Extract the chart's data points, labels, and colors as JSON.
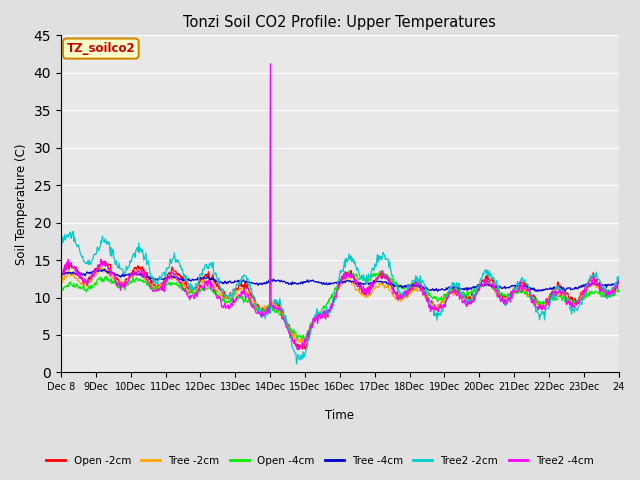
{
  "title": "Tonzi Soil CO2 Profile: Upper Temperatures",
  "ylabel": "Soil Temperature (C)",
  "xlabel": "Time",
  "watermark": "TZ_soilco2",
  "ylim": [
    0,
    45
  ],
  "yticks": [
    0,
    5,
    10,
    15,
    20,
    25,
    30,
    35,
    40,
    45
  ],
  "n_days": 16,
  "start_day": 8,
  "series": [
    {
      "label": "Open -2cm",
      "color": "#ff0000"
    },
    {
      "label": "Tree -2cm",
      "color": "#ffa500"
    },
    {
      "label": "Open -4cm",
      "color": "#00ee00"
    },
    {
      "label": "Tree -4cm",
      "color": "#0000cc"
    },
    {
      "label": "Tree2 -2cm",
      "color": "#00cccc"
    },
    {
      "label": "Tree2 -4cm",
      "color": "#ff00ff"
    }
  ],
  "axes_bg": "#e8e8e8",
  "fig_bg": "#e0e0e0",
  "grid_color": "#ffffff",
  "open2_base": [
    13.0,
    13.5,
    13.0,
    12.5,
    12.0,
    11.0,
    9.0,
    3.5,
    12.0,
    12.0,
    11.0,
    9.5,
    11.5,
    11.0,
    10.0,
    11.0,
    12.0
  ],
  "tree2_base": [
    12.0,
    13.0,
    12.5,
    12.0,
    11.5,
    10.5,
    9.0,
    4.0,
    11.5,
    11.0,
    10.5,
    9.5,
    11.0,
    10.5,
    9.5,
    10.5,
    12.0
  ],
  "open4_base": [
    11.0,
    12.0,
    12.0,
    11.5,
    11.0,
    9.5,
    8.5,
    4.5,
    12.5,
    13.0,
    11.5,
    10.0,
    11.5,
    10.5,
    9.5,
    10.0,
    11.0
  ],
  "tree4_base": [
    13.0,
    13.5,
    13.0,
    12.5,
    12.5,
    12.0,
    12.0,
    12.0,
    12.0,
    12.0,
    11.5,
    11.0,
    11.5,
    11.5,
    11.0,
    11.5,
    12.0
  ],
  "tree2_2_base": [
    17.0,
    16.0,
    15.0,
    13.5,
    13.0,
    11.5,
    9.0,
    2.5,
    13.0,
    14.5,
    11.5,
    9.0,
    12.0,
    11.0,
    9.0,
    10.5,
    13.0
  ],
  "tree2_4_base": [
    13.0,
    13.5,
    12.5,
    12.0,
    11.0,
    9.5,
    8.5,
    3.5,
    12.0,
    12.0,
    11.0,
    9.0,
    11.0,
    10.5,
    9.5,
    10.5,
    12.0
  ]
}
